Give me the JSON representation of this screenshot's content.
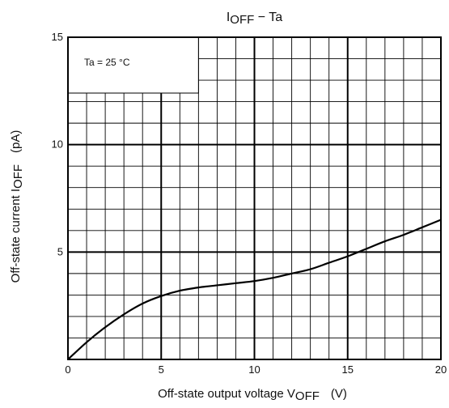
{
  "chart_data": {
    "type": "line",
    "title": {
      "main": "I",
      "sub": "OFF",
      "rest": " − Ta"
    },
    "xlabel": {
      "main": "Off-state output voltage V",
      "sub": "OFF",
      "unit": "(V)"
    },
    "ylabel": {
      "main": "Off-state current   I",
      "sub": "OFF",
      "unit": "(pA)"
    },
    "annotation": "Ta = 25 °C",
    "xlim": [
      0,
      20
    ],
    "ylim": [
      0,
      15
    ],
    "x_ticks": [
      0,
      5,
      10,
      15,
      20
    ],
    "y_ticks": [
      5,
      10,
      15
    ],
    "x_tick_labels": [
      "0",
      "5",
      "10",
      "15",
      "20"
    ],
    "y_tick_labels": [
      "5",
      "10",
      "15"
    ],
    "minor_x_step": 1,
    "minor_y_step": 1,
    "grid": true,
    "line_color": "#000000",
    "series": [
      {
        "x": [
          0,
          1,
          2,
          3,
          4,
          5,
          6,
          7,
          8,
          9,
          10,
          11,
          12,
          13,
          14,
          15,
          16,
          17,
          18,
          19,
          20
        ],
        "y": [
          0.0,
          0.8,
          1.5,
          2.1,
          2.6,
          2.95,
          3.2,
          3.35,
          3.45,
          3.55,
          3.65,
          3.8,
          4.0,
          4.2,
          4.5,
          4.8,
          5.15,
          5.5,
          5.8,
          6.15,
          6.5
        ]
      }
    ]
  }
}
